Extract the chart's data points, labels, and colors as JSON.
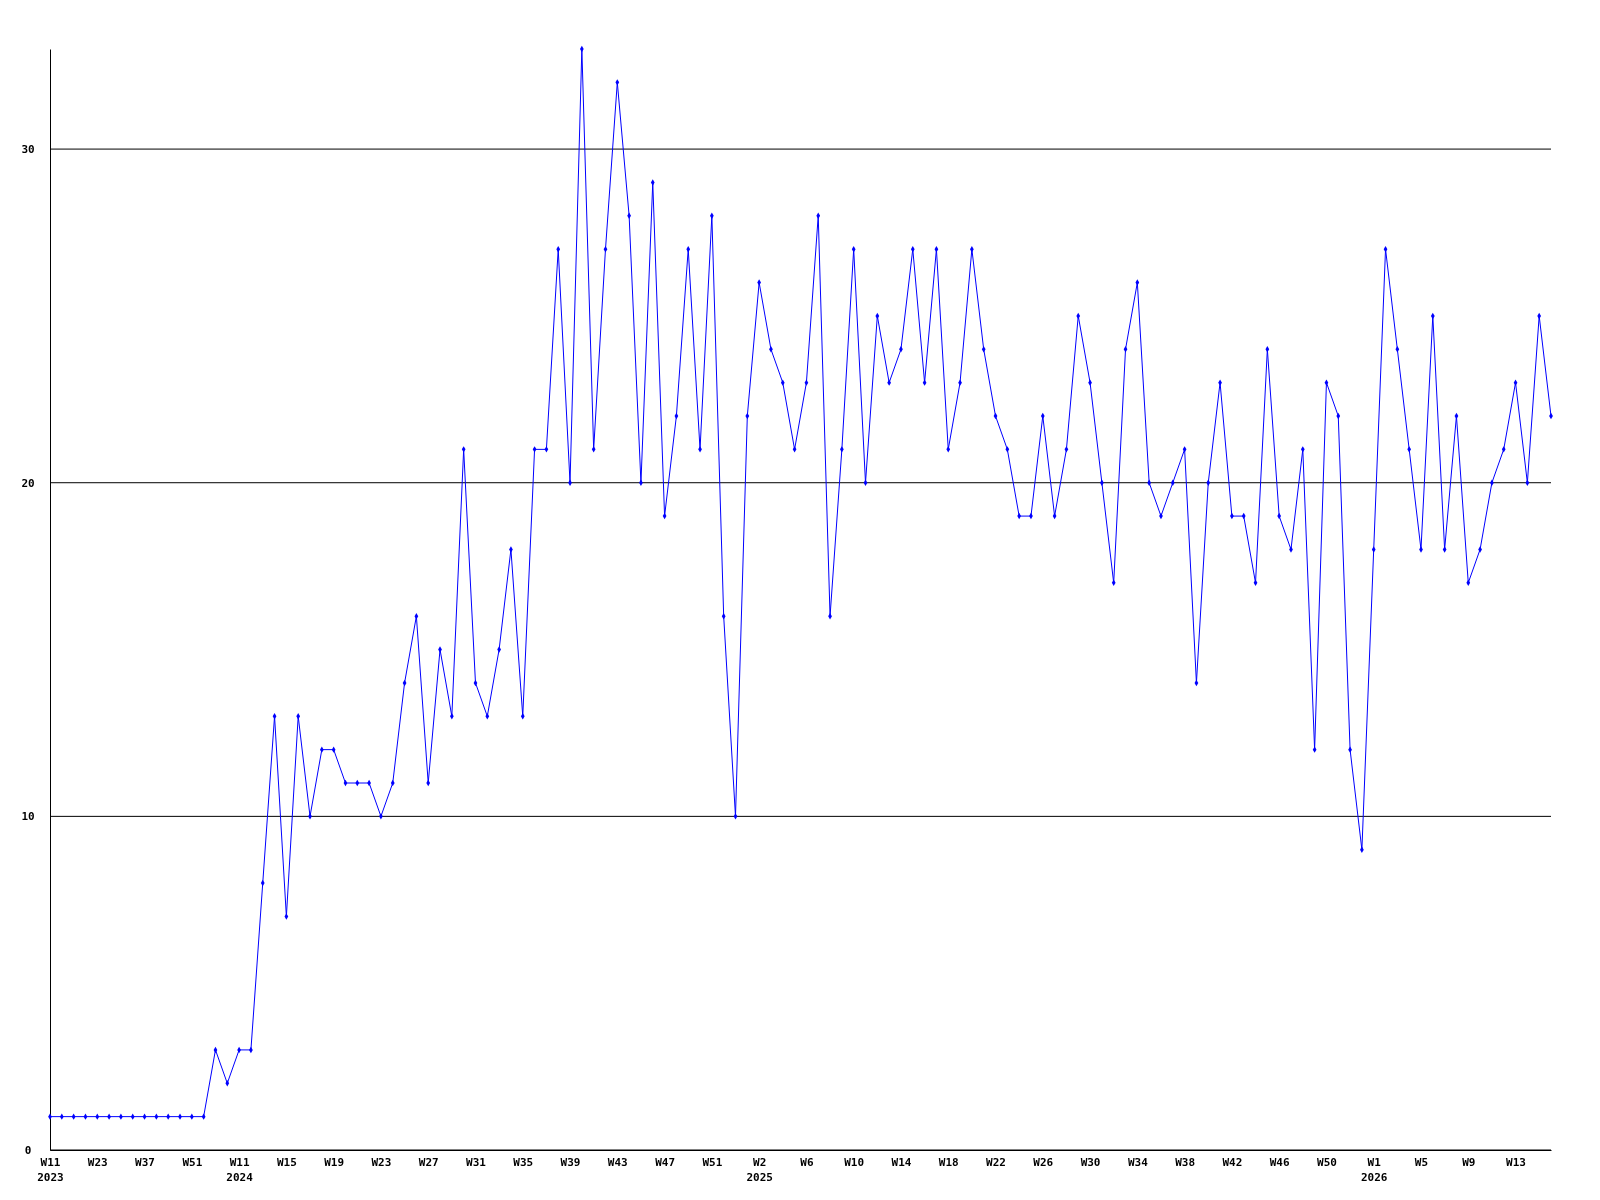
{
  "chart_data": {
    "type": "line",
    "categories": [
      "W11\n2023",
      null,
      null,
      null,
      "W23",
      null,
      null,
      null,
      "W37",
      null,
      null,
      null,
      "W51",
      null,
      null,
      null,
      "W11\n2024",
      null,
      null,
      null,
      "W15",
      null,
      null,
      null,
      "W19",
      null,
      null,
      null,
      "W23",
      null,
      null,
      null,
      "W27",
      null,
      null,
      null,
      "W31",
      null,
      null,
      null,
      "W35",
      null,
      null,
      null,
      "W39",
      null,
      null,
      null,
      "W43",
      null,
      null,
      null,
      "W47",
      null,
      null,
      null,
      "W51",
      null,
      null,
      null,
      "W2\n2025",
      null,
      null,
      null,
      "W6",
      null,
      null,
      null,
      "W10",
      null,
      null,
      null,
      "W14",
      null,
      null,
      null,
      "W18",
      null,
      null,
      null,
      "W22",
      null,
      null,
      null,
      "W26",
      null,
      null,
      null,
      "W30",
      null,
      null,
      null,
      "W34",
      null,
      null,
      null,
      "W38",
      null,
      null,
      null,
      "W42",
      null,
      null,
      null,
      "W46",
      null,
      null,
      null,
      "W50",
      null,
      null,
      null,
      "W1\n2026",
      null,
      null,
      null,
      "W5",
      null,
      null,
      null,
      "W9",
      null,
      null,
      null,
      "W13",
      null,
      null,
      null
    ],
    "series": [
      {
        "color": "#0000ff",
        "values": [
          1,
          1,
          1,
          1,
          1,
          1,
          1,
          1,
          1,
          1,
          1,
          1,
          1,
          1,
          3,
          2,
          3,
          3,
          8,
          13,
          7,
          13,
          10,
          12,
          12,
          11,
          11,
          11,
          10,
          11,
          14,
          16,
          11,
          15,
          13,
          21,
          14,
          13,
          15,
          18,
          13,
          21,
          21,
          27,
          20,
          33,
          21,
          27,
          32,
          28,
          20,
          29,
          19,
          22,
          27,
          21,
          28,
          16,
          10,
          22,
          26,
          24,
          23,
          21,
          23,
          28,
          16,
          21,
          27,
          20,
          25,
          23,
          24,
          27,
          23,
          27,
          21,
          23,
          27,
          24,
          22,
          21,
          19,
          19,
          22,
          19,
          21,
          25,
          23,
          20,
          17,
          24,
          26,
          20,
          19,
          20,
          21,
          14,
          20,
          23,
          19,
          19,
          17,
          24,
          19,
          18,
          21,
          12,
          23,
          22,
          12,
          9,
          18,
          27,
          24,
          21,
          18,
          25,
          18,
          22,
          17,
          18,
          20,
          21,
          23,
          20,
          25,
          22
        ]
      }
    ],
    "ylim": [
      0,
      33
    ],
    "yticks": [
      0,
      10,
      20,
      30
    ],
    "grid": "y",
    "marker": "diamond",
    "line_style": "solid"
  }
}
